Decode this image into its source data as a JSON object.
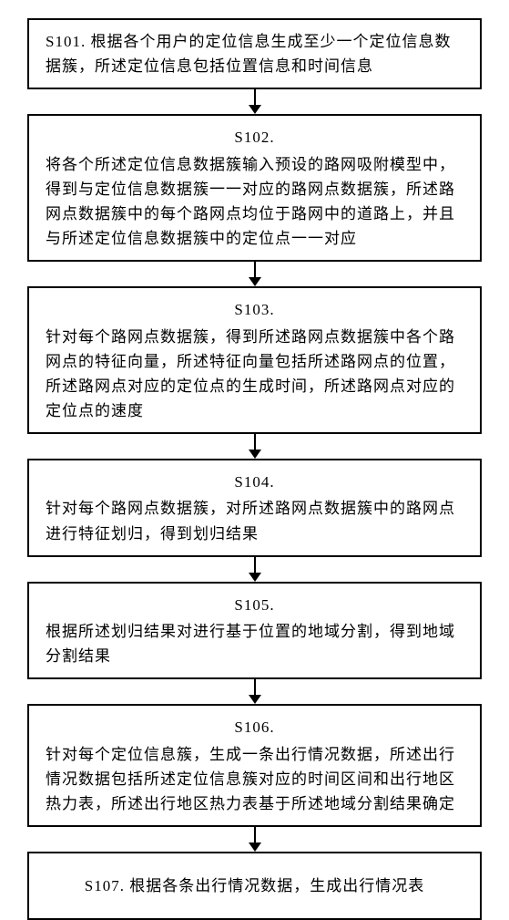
{
  "flowchart": {
    "type": "flowchart",
    "direction": "vertical",
    "box_border_color": "#000000",
    "box_border_width": 2,
    "box_background": "#ffffff",
    "arrow_color": "#000000",
    "font_family": "SimSun",
    "font_size": 17,
    "text_color": "#000000",
    "steps": [
      {
        "id": "S101",
        "label": "S101.",
        "text": "根据各个用户的定位信息生成至少一个定位信息数据簇，所述定位信息包括位置信息和时间信息",
        "centered_label": false,
        "inline_label": true
      },
      {
        "id": "S102",
        "label": "S102.",
        "text": "将各个所述定位信息数据簇输入预设的路网吸附模型中，得到与定位信息数据簇一一对应的路网点数据簇，所述路网点数据簇中的每个路网点均位于路网中的道路上，并且与所述定位信息数据簇中的定位点一一对应",
        "centered_label": true,
        "inline_label": false
      },
      {
        "id": "S103",
        "label": "S103.",
        "text": "针对每个路网点数据簇，得到所述路网点数据簇中各个路网点的特征向量，所述特征向量包括所述路网点的位置，所述路网点对应的定位点的生成时间，所述路网点对应的定位点的速度",
        "centered_label": true,
        "inline_label": false
      },
      {
        "id": "S104",
        "label": "S104.",
        "text": "针对每个路网点数据簇，对所述路网点数据簇中的路网点进行特征划归，得到划归结果",
        "centered_label": true,
        "inline_label": false
      },
      {
        "id": "S105",
        "label": "S105.",
        "text": "根据所述划归结果对进行基于位置的地域分割，得到地域分割结果",
        "centered_label": true,
        "inline_label": false
      },
      {
        "id": "S106",
        "label": "S106.",
        "text": "针对每个定位信息簇，生成一条出行情况数据，所述出行情况数据包括所述定位信息簇对应的时间区间和出行地区热力表，所述出行地区热力表基于所述地域分割结果确定",
        "centered_label": true,
        "inline_label": false
      },
      {
        "id": "S107",
        "label": "S107.",
        "text": "根据各条出行情况数据，生成出行情况表",
        "centered_label": false,
        "inline_label": true,
        "single_line": true
      }
    ]
  }
}
